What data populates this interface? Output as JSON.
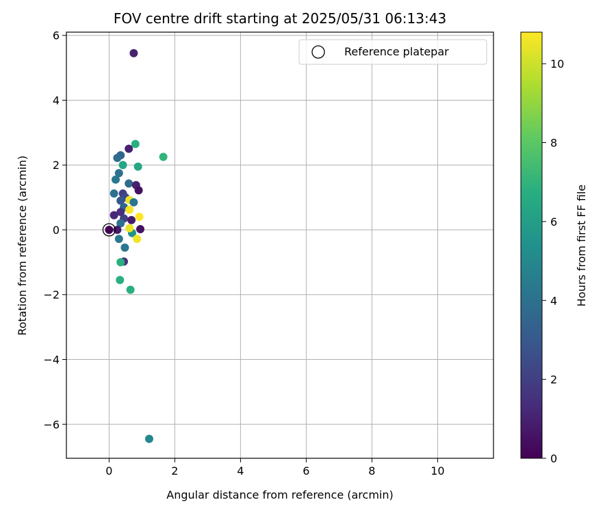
{
  "chart_data": {
    "type": "scatter",
    "title": "FOV centre drift starting at 2025/05/31 06:13:43",
    "xlabel": "Angular distance from reference (arcmin)",
    "ylabel": "Rotation from reference (arcmin)",
    "xlim": [
      -1.3,
      11.7
    ],
    "ylim": [
      -7.05,
      6.1
    ],
    "xticks": [
      0,
      2,
      4,
      6,
      8,
      10
    ],
    "yticks": [
      -6,
      -4,
      -2,
      0,
      2,
      4,
      6
    ],
    "xtick_labels": [
      "0",
      "2",
      "4",
      "6",
      "8",
      "10"
    ],
    "ytick_labels": [
      "−6",
      "−4",
      "−2",
      "0",
      "2",
      "4",
      "6"
    ],
    "grid": true,
    "legend": {
      "position": "top-right",
      "entries": [
        {
          "label": "Reference platepar",
          "marker": "open-circle",
          "x": 0,
          "y": 0
        }
      ]
    },
    "colorbar": {
      "label": "Hours from first FF file",
      "colormap": "viridis",
      "range": [
        0,
        10.8
      ],
      "ticks": [
        0,
        2,
        4,
        6,
        8,
        10
      ],
      "tick_labels": [
        "0",
        "2",
        "4",
        "6",
        "8",
        "10"
      ]
    },
    "points": [
      {
        "x": 0.75,
        "y": 5.45,
        "c": 1.0
      },
      {
        "x": 0.8,
        "y": 2.65,
        "c": 6.8
      },
      {
        "x": 1.65,
        "y": 2.25,
        "c": 7.0
      },
      {
        "x": 0.35,
        "y": 2.3,
        "c": 3.5
      },
      {
        "x": 0.25,
        "y": 2.22,
        "c": 3.8
      },
      {
        "x": 0.6,
        "y": 2.5,
        "c": 1.0
      },
      {
        "x": 0.42,
        "y": 2.0,
        "c": 6.4
      },
      {
        "x": 0.88,
        "y": 1.95,
        "c": 6.4
      },
      {
        "x": 0.3,
        "y": 1.75,
        "c": 4.0
      },
      {
        "x": 0.2,
        "y": 1.55,
        "c": 4.3
      },
      {
        "x": 0.6,
        "y": 1.43,
        "c": 3.8
      },
      {
        "x": 0.82,
        "y": 1.38,
        "c": 1.0
      },
      {
        "x": 0.9,
        "y": 1.22,
        "c": 0.5
      },
      {
        "x": 0.15,
        "y": 1.12,
        "c": 4.0
      },
      {
        "x": 0.42,
        "y": 1.12,
        "c": 2.0
      },
      {
        "x": 0.5,
        "y": 1.0,
        "c": 2.4
      },
      {
        "x": 0.62,
        "y": 0.92,
        "c": 10.5
      },
      {
        "x": 0.75,
        "y": 0.85,
        "c": 4.2
      },
      {
        "x": 0.35,
        "y": 0.9,
        "c": 3.0
      },
      {
        "x": 0.45,
        "y": 0.7,
        "c": 3.5
      },
      {
        "x": 0.62,
        "y": 0.62,
        "c": 10.7
      },
      {
        "x": 0.35,
        "y": 0.55,
        "c": 1.5
      },
      {
        "x": 0.15,
        "y": 0.45,
        "c": 1.2
      },
      {
        "x": 0.92,
        "y": 0.4,
        "c": 10.8
      },
      {
        "x": 0.45,
        "y": 0.35,
        "c": 2.0
      },
      {
        "x": 0.68,
        "y": 0.3,
        "c": 0.8
      },
      {
        "x": 0.35,
        "y": 0.2,
        "c": 4.0
      },
      {
        "x": 0.7,
        "y": -0.1,
        "c": 5.5
      },
      {
        "x": 0.62,
        "y": 0.05,
        "c": 10.5
      },
      {
        "x": 0.95,
        "y": 0.02,
        "c": 0.5
      },
      {
        "x": 0.0,
        "y": 0.0,
        "c": 0.0
      },
      {
        "x": 0.25,
        "y": 0.0,
        "c": 0.8
      },
      {
        "x": 0.85,
        "y": -0.28,
        "c": 10.6
      },
      {
        "x": 0.3,
        "y": -0.28,
        "c": 4.3
      },
      {
        "x": 0.48,
        "y": -0.55,
        "c": 4.3
      },
      {
        "x": 0.45,
        "y": -0.98,
        "c": 1.6
      },
      {
        "x": 0.35,
        "y": -1.0,
        "c": 6.8
      },
      {
        "x": 0.33,
        "y": -1.55,
        "c": 6.8
      },
      {
        "x": 0.65,
        "y": -1.85,
        "c": 6.8
      },
      {
        "x": 1.22,
        "y": -6.45,
        "c": 5.0
      }
    ]
  }
}
